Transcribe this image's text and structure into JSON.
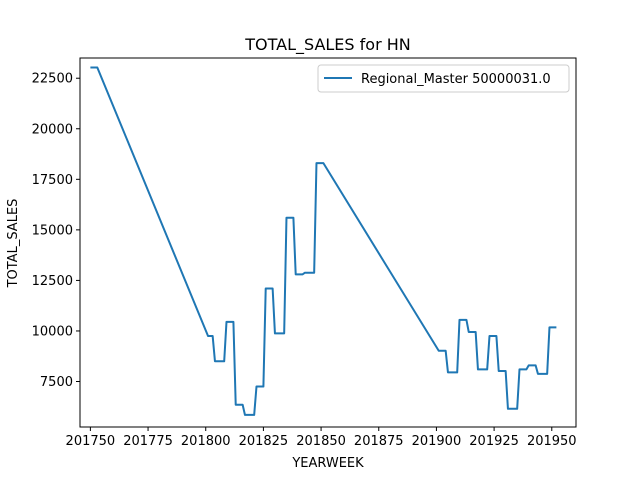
{
  "chart_data": {
    "type": "line",
    "title": "TOTAL_SALES for HN",
    "xlabel": "YEARWEEK",
    "ylabel": "TOTAL_SALES",
    "xlim": [
      201745.5,
      201960.5
    ],
    "ylim": [
      5250,
      23500
    ],
    "xticks": [
      201750,
      201775,
      201800,
      201825,
      201850,
      201875,
      201900,
      201925,
      201950
    ],
    "yticks": [
      7500,
      10000,
      12500,
      15000,
      17500,
      20000,
      22500
    ],
    "grid": false,
    "legend_position": "top-right",
    "series": [
      {
        "name": "Regional_Master 50000031.0",
        "color": "#1f77b4",
        "points": [
          [
            201750,
            23030
          ],
          [
            201753,
            23030
          ],
          [
            201801,
            9750
          ],
          [
            201803,
            9750
          ],
          [
            201804,
            8500
          ],
          [
            201808,
            8500
          ],
          [
            201809,
            10450
          ],
          [
            201812,
            10450
          ],
          [
            201813,
            6350
          ],
          [
            201816,
            6350
          ],
          [
            201817,
            5850
          ],
          [
            201821,
            5850
          ],
          [
            201822,
            7250
          ],
          [
            201825,
            7250
          ],
          [
            201826,
            12100
          ],
          [
            201829,
            12100
          ],
          [
            201830,
            9880
          ],
          [
            201834,
            9880
          ],
          [
            201835,
            15600
          ],
          [
            201838,
            15600
          ],
          [
            201839,
            12800
          ],
          [
            201842,
            12800
          ],
          [
            201843,
            12880
          ],
          [
            201847,
            12880
          ],
          [
            201848,
            18300
          ],
          [
            201851,
            18300
          ],
          [
            201901,
            9020
          ],
          [
            201904,
            9020
          ],
          [
            201905,
            7950
          ],
          [
            201909,
            7950
          ],
          [
            201910,
            10550
          ],
          [
            201913,
            10550
          ],
          [
            201914,
            9950
          ],
          [
            201917,
            9950
          ],
          [
            201918,
            8100
          ],
          [
            201922,
            8100
          ],
          [
            201923,
            9750
          ],
          [
            201926,
            9750
          ],
          [
            201927,
            8020
          ],
          [
            201930,
            8020
          ],
          [
            201931,
            6150
          ],
          [
            201935,
            6150
          ],
          [
            201936,
            8100
          ],
          [
            201939,
            8100
          ],
          [
            201940,
            8300
          ],
          [
            201943,
            8300
          ],
          [
            201944,
            7880
          ],
          [
            201948,
            7880
          ],
          [
            201949,
            10180
          ],
          [
            201952,
            10180
          ]
        ]
      }
    ]
  }
}
